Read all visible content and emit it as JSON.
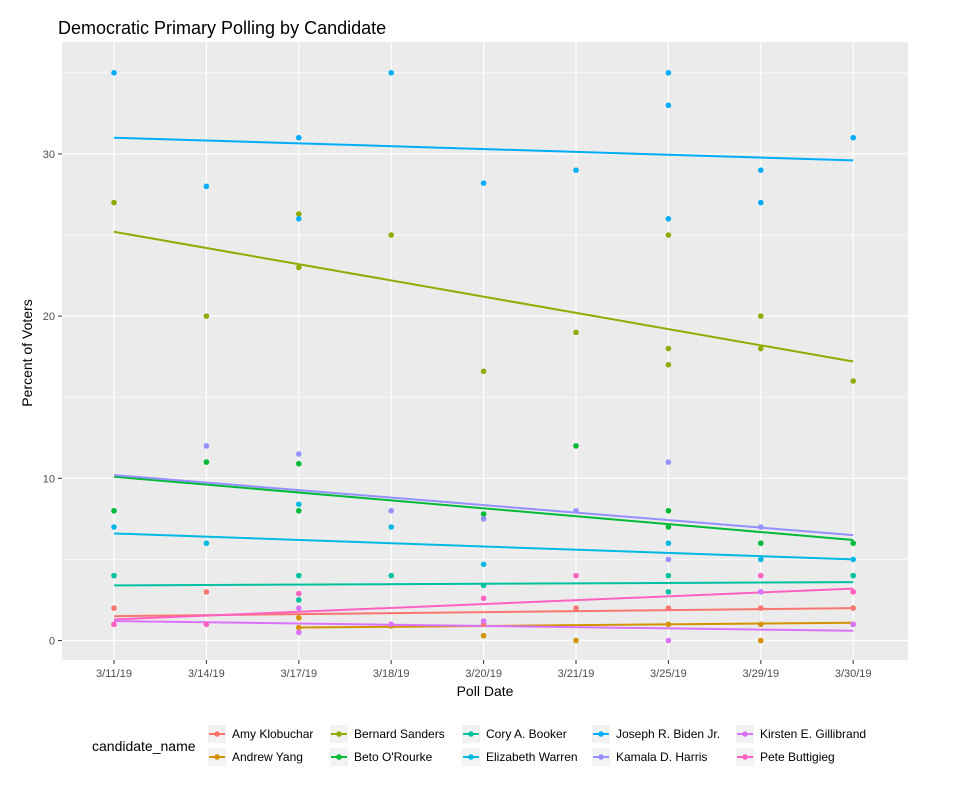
{
  "chart_data": {
    "type": "scatter",
    "title": "Democratic Primary Polling by Candidate",
    "xlabel": "Poll Date",
    "ylabel": "Percent of Voters",
    "categories": [
      "3/11/19",
      "3/14/19",
      "3/17/19",
      "3/18/19",
      "3/20/19",
      "3/21/19",
      "3/25/19",
      "3/29/19",
      "3/30/19"
    ],
    "y_ticks": [
      0,
      10,
      20,
      30
    ],
    "ylim": [
      -1.2,
      36.9
    ],
    "grid": true,
    "legend": {
      "title": "candidate_name",
      "position": "bottom"
    },
    "series": [
      {
        "name": "Amy Klobuchar",
        "color": "#F8766D",
        "points": [
          [
            0,
            2
          ],
          [
            1,
            3
          ],
          [
            4,
            1
          ],
          [
            5,
            2
          ],
          [
            6,
            2
          ],
          [
            7,
            2
          ],
          [
            8,
            3
          ],
          [
            8,
            2
          ]
        ],
        "trend": [
          1.5,
          2.0
        ]
      },
      {
        "name": "Andrew Yang",
        "color": "#D39200",
        "points": [
          [
            2,
            1.4
          ],
          [
            2,
            0.8
          ],
          [
            3,
            0.9
          ],
          [
            4,
            0.3
          ],
          [
            5,
            0
          ],
          [
            6,
            1
          ],
          [
            7,
            0
          ],
          [
            7,
            1
          ],
          [
            8,
            1
          ]
        ],
        "trend_x": [
          2,
          8
        ],
        "trend": [
          0.8,
          1.1
        ]
      },
      {
        "name": "Bernard Sanders",
        "color": "#93AA00",
        "points": [
          [
            0,
            27
          ],
          [
            1,
            20
          ],
          [
            2,
            26.3
          ],
          [
            2,
            23
          ],
          [
            3,
            25
          ],
          [
            4,
            16.6
          ],
          [
            5,
            19
          ],
          [
            6,
            25
          ],
          [
            6,
            18
          ],
          [
            6,
            17
          ],
          [
            7,
            20
          ],
          [
            7,
            18
          ],
          [
            8,
            16
          ]
        ],
        "trend": [
          25.2,
          17.2
        ]
      },
      {
        "name": "Beto O'Rourke",
        "color": "#00BA38",
        "points": [
          [
            0,
            8
          ],
          [
            1,
            11
          ],
          [
            2,
            10.9
          ],
          [
            2,
            8
          ],
          [
            4,
            7.8
          ],
          [
            5,
            12
          ],
          [
            6,
            8
          ],
          [
            6,
            7
          ],
          [
            7,
            6
          ],
          [
            8,
            6
          ]
        ],
        "trend": [
          10.1,
          6.2
        ]
      },
      {
        "name": "Cory A. Booker",
        "color": "#00C19F",
        "points": [
          [
            0,
            4
          ],
          [
            2,
            2.5
          ],
          [
            2,
            4
          ],
          [
            3,
            4
          ],
          [
            4,
            3.4
          ],
          [
            6,
            4
          ],
          [
            6,
            3
          ],
          [
            7,
            3
          ],
          [
            8,
            4
          ]
        ],
        "trend": [
          3.4,
          3.6
        ]
      },
      {
        "name": "Elizabeth Warren",
        "color": "#00B9E3",
        "points": [
          [
            0,
            7
          ],
          [
            1,
            6
          ],
          [
            2,
            8.4
          ],
          [
            3,
            7
          ],
          [
            4,
            4.7
          ],
          [
            6,
            6
          ],
          [
            7,
            5
          ],
          [
            8,
            5
          ]
        ],
        "trend": [
          6.6,
          5.0
        ]
      },
      {
        "name": "Joseph R. Biden Jr.",
        "color": "#00ADFA",
        "points": [
          [
            0,
            35
          ],
          [
            1,
            28
          ],
          [
            2,
            31
          ],
          [
            2,
            26
          ],
          [
            3,
            35
          ],
          [
            4,
            28.2
          ],
          [
            5,
            29
          ],
          [
            6,
            35
          ],
          [
            6,
            33
          ],
          [
            6,
            26
          ],
          [
            7,
            29
          ],
          [
            7,
            27
          ],
          [
            8,
            31
          ]
        ],
        "trend": [
          31.0,
          29.6
        ]
      },
      {
        "name": "Kamala D. Harris",
        "color": "#9590FF",
        "points": [
          [
            1,
            12
          ],
          [
            2,
            11.5
          ],
          [
            3,
            8
          ],
          [
            4,
            7.5
          ],
          [
            5,
            8
          ],
          [
            6,
            11
          ],
          [
            6,
            5
          ],
          [
            7,
            7
          ]
        ],
        "trend": [
          10.2,
          6.5
        ]
      },
      {
        "name": "Kirsten E. Gillibrand",
        "color": "#DB72FB",
        "points": [
          [
            0,
            1
          ],
          [
            1,
            1
          ],
          [
            2,
            0.5
          ],
          [
            2,
            2
          ],
          [
            3,
            1
          ],
          [
            4,
            1.2
          ],
          [
            6,
            0
          ],
          [
            7,
            3
          ],
          [
            8,
            1
          ]
        ],
        "trend": [
          1.2,
          0.6
        ]
      },
      {
        "name": "Pete Buttigieg",
        "color": "#FF61C3",
        "points": [
          [
            0,
            1
          ],
          [
            1,
            1
          ],
          [
            2,
            2.9
          ],
          [
            4,
            2.6
          ],
          [
            5,
            4
          ],
          [
            7,
            4
          ],
          [
            8,
            3
          ]
        ],
        "trend": [
          1.3,
          3.2
        ]
      }
    ]
  }
}
